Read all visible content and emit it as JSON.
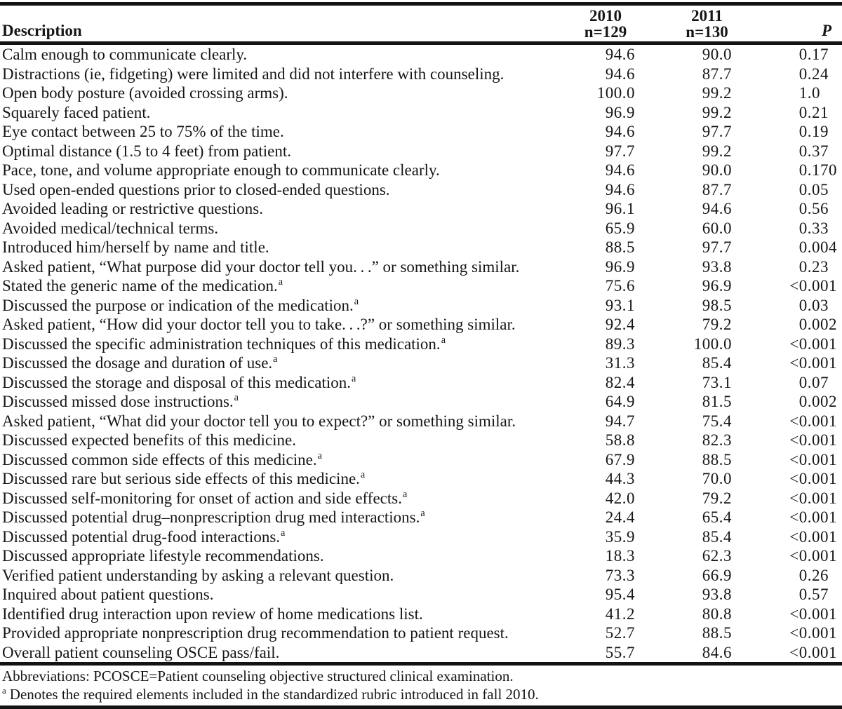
{
  "table": {
    "header": {
      "description": "Description",
      "col_2010_year": "2010",
      "col_2010_n": "n=129",
      "col_2011_year": "2011",
      "col_2011_n": "n=130",
      "p_label": "P"
    },
    "rows": [
      {
        "description": "Calm enough to communicate clearly.",
        "marker": "",
        "v2010": "94.6",
        "v2011": "90.0",
        "p": "0.17"
      },
      {
        "description": "Distractions (ie, fidgeting) were limited and did not interfere with counseling.",
        "marker": "",
        "v2010": "94.6",
        "v2011": "87.7",
        "p": "0.24"
      },
      {
        "description": "Open body posture (avoided crossing arms).",
        "marker": "",
        "v2010": "100.0",
        "v2011": "99.2",
        "p": "1.0"
      },
      {
        "description": "Squarely faced patient.",
        "marker": "",
        "v2010": "96.9",
        "v2011": "99.2",
        "p": "0.21"
      },
      {
        "description": "Eye contact between 25 to 75% of the time.",
        "marker": "",
        "v2010": "94.6",
        "v2011": "97.7",
        "p": "0.19"
      },
      {
        "description": "Optimal distance (1.5 to 4 feet) from patient.",
        "marker": "",
        "v2010": "97.7",
        "v2011": "99.2",
        "p": "0.37"
      },
      {
        "description": "Pace, tone, and volume appropriate enough to communicate clearly.",
        "marker": "",
        "v2010": "94.6",
        "v2011": "90.0",
        "p": "0.170"
      },
      {
        "description": "Used open-ended questions prior to closed-ended questions.",
        "marker": "",
        "v2010": "94.6",
        "v2011": "87.7",
        "p": "0.05"
      },
      {
        "description": "Avoided leading or restrictive questions.",
        "marker": "",
        "v2010": "96.1",
        "v2011": "94.6",
        "p": "0.56"
      },
      {
        "description": "Avoided medical/technical terms.",
        "marker": "",
        "v2010": "65.9",
        "v2011": "60.0",
        "p": "0.33"
      },
      {
        "description": "Introduced him/herself by name and title.",
        "marker": "",
        "v2010": "88.5",
        "v2011": "97.7",
        "p": "0.004"
      },
      {
        "description": "Asked patient, “What purpose did your doctor tell you. . .” or something similar.",
        "marker": "",
        "v2010": "96.9",
        "v2011": "93.8",
        "p": "0.23"
      },
      {
        "description": "Stated the generic name of the medication.",
        "marker": "a",
        "v2010": "75.6",
        "v2011": "96.9",
        "p": "<0.001"
      },
      {
        "description": "Discussed the purpose or indication of the medication.",
        "marker": "a",
        "v2010": "93.1",
        "v2011": "98.5",
        "p": "0.03"
      },
      {
        "description": "Asked patient, “How did your doctor tell you to take. . .?” or something similar.",
        "marker": "",
        "v2010": "92.4",
        "v2011": "79.2",
        "p": "0.002"
      },
      {
        "description": "Discussed the specific administration techniques of this medication.",
        "marker": "a",
        "v2010": "89.3",
        "v2011": "100.0",
        "p": "<0.001"
      },
      {
        "description": "Discussed the dosage and duration of use.",
        "marker": "a",
        "v2010": "31.3",
        "v2011": "85.4",
        "p": "<0.001"
      },
      {
        "description": "Discussed the storage and disposal of this medication.",
        "marker": "a",
        "v2010": "82.4",
        "v2011": "73.1",
        "p": "0.07"
      },
      {
        "description": "Discussed missed dose instructions.",
        "marker": "a",
        "v2010": "64.9",
        "v2011": "81.5",
        "p": "0.002"
      },
      {
        "description": "Asked patient, “What did your doctor tell you to expect?” or something similar.",
        "marker": "",
        "v2010": "94.7",
        "v2011": "75.4",
        "p": "<0.001"
      },
      {
        "description": "Discussed expected benefits of this medicine.",
        "marker": "",
        "v2010": "58.8",
        "v2011": "82.3",
        "p": "<0.001"
      },
      {
        "description": "Discussed common side effects of this medicine.",
        "marker": "a",
        "v2010": "67.9",
        "v2011": "88.5",
        "p": "<0.001"
      },
      {
        "description": "Discussed rare but serious side effects of this medicine.",
        "marker": "a",
        "v2010": "44.3",
        "v2011": "70.0",
        "p": "<0.001"
      },
      {
        "description": "Discussed self-monitoring for onset of action and side effects.",
        "marker": "a",
        "v2010": "42.0",
        "v2011": "79.2",
        "p": "<0.001"
      },
      {
        "description": "Discussed potential drug–nonprescription drug med interactions.",
        "marker": "a",
        "v2010": "24.4",
        "v2011": "65.4",
        "p": "<0.001"
      },
      {
        "description": "Discussed potential drug-food interactions.",
        "marker": "a",
        "v2010": "35.9",
        "v2011": "85.4",
        "p": "<0.001"
      },
      {
        "description": "Discussed appropriate lifestyle recommendations.",
        "marker": "",
        "v2010": "18.3",
        "v2011": "62.3",
        "p": "<0.001"
      },
      {
        "description": "Verified patient understanding by asking a relevant question.",
        "marker": "",
        "v2010": "73.3",
        "v2011": "66.9",
        "p": "0.26"
      },
      {
        "description": "Inquired about patient questions.",
        "marker": "",
        "v2010": "95.4",
        "v2011": "93.8",
        "p": "0.57"
      },
      {
        "description": "Identified drug interaction upon review of home medications list.",
        "marker": "",
        "v2010": "41.2",
        "v2011": "80.8",
        "p": "<0.001"
      },
      {
        "description": "Provided appropriate nonprescription drug recommendation to patient request.",
        "marker": "",
        "v2010": "52.7",
        "v2011": "88.5",
        "p": "<0.001"
      },
      {
        "description": "Overall patient counseling OSCE pass/fail.",
        "marker": "",
        "v2010": "55.7",
        "v2011": "84.6",
        "p": "<0.001"
      }
    ]
  },
  "footnotes": {
    "abbreviations": "Abbreviations: PCOSCE=Patient counseling objective structured clinical examination.",
    "marker": "a",
    "note_a": "Denotes the required elements included in the standardized rubric introduced in fall 2010."
  },
  "colors": {
    "background": "#ffffff",
    "text": "#161616",
    "rule": "#131313"
  }
}
